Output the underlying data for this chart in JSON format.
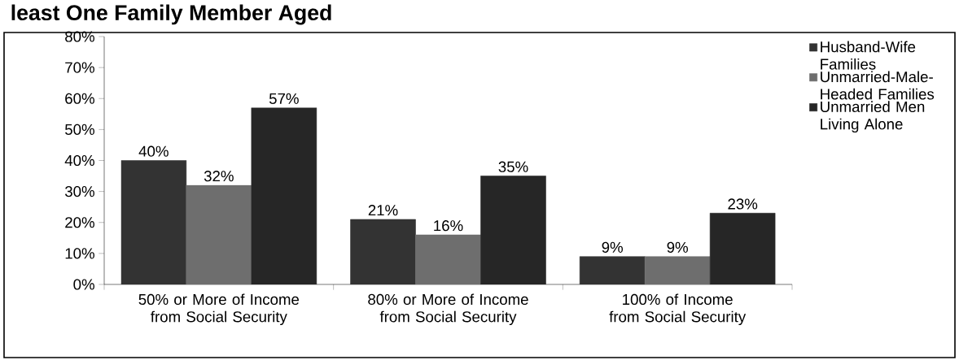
{
  "chart_data": {
    "type": "bar",
    "title": "least One Family Member Aged",
    "categories": [
      "50% or More of Income from Social Security",
      "80% or More of Income from Social Security",
      "100% of Income from Social Security"
    ],
    "series": [
      {
        "name": "Husband-Wife Families",
        "color": "#333333",
        "values": [
          40,
          21,
          9
        ],
        "value_labels": [
          "40%",
          "21%",
          "9%"
        ]
      },
      {
        "name": "Unmarried-Male-Headed Families",
        "color": "#6e6e6e",
        "values": [
          32,
          16,
          9
        ],
        "value_labels": [
          "32%",
          "16%",
          "9%"
        ]
      },
      {
        "name": "Unmarried Men Living Alone",
        "color": "#262626",
        "values": [
          57,
          35,
          23
        ],
        "value_labels": [
          "57%",
          "35%",
          "23%"
        ]
      }
    ],
    "ylim": [
      0,
      80
    ],
    "yticks": [
      {
        "value": 0,
        "label": "0%"
      },
      {
        "value": 10,
        "label": "10%"
      },
      {
        "value": 20,
        "label": "20%"
      },
      {
        "value": 30,
        "label": "30%"
      },
      {
        "value": 40,
        "label": "40%"
      },
      {
        "value": 50,
        "label": "50%"
      },
      {
        "value": 60,
        "label": "60%"
      },
      {
        "value": 70,
        "label": "70%"
      },
      {
        "value": 80,
        "label": "80%"
      }
    ],
    "grid": false,
    "legend": "right"
  }
}
